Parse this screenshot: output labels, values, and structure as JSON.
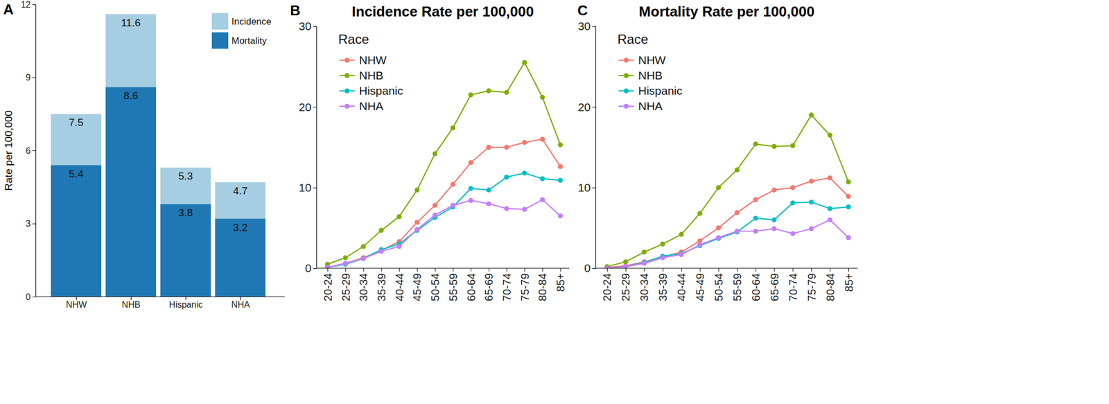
{
  "chart_data": [
    {
      "type": "bar",
      "annotations": [
        "A"
      ],
      "ylabel": "Rate per 100,000",
      "categories": [
        "NHW",
        "NHB",
        "Hispanic",
        "NHA"
      ],
      "series": [
        {
          "name": "Incidence",
          "color": "#a6cee3",
          "values": [
            7.5,
            11.6,
            5.3,
            4.7
          ]
        },
        {
          "name": "Mortality",
          "color": "#1f78b4",
          "values": [
            5.4,
            8.6,
            3.8,
            3.2
          ]
        }
      ],
      "ylim": [
        0,
        12
      ],
      "yticks": [
        0,
        3,
        6,
        9,
        12
      ],
      "stacked": false,
      "data_labels": true,
      "legend": "top-right",
      "grid": false
    },
    {
      "type": "line",
      "annotations": [
        "B"
      ],
      "title": "Incidence Rate per 100,000",
      "legend_title": "Race",
      "categories": [
        "20-24",
        "25-29",
        "30-34",
        "35-39",
        "40-44",
        "45-49",
        "50-54",
        "55-59",
        "60-64",
        "65-69",
        "70-74",
        "75-79",
        "80-84",
        "85+"
      ],
      "series": [
        {
          "name": "NHW",
          "color": "#f8766d",
          "values": [
            0.1,
            0.6,
            1.3,
            2.2,
            3.3,
            5.7,
            7.8,
            10.4,
            13.1,
            15.0,
            15.0,
            15.6,
            16.0,
            12.6
          ]
        },
        {
          "name": "NHB",
          "color": "#7cae00",
          "values": [
            0.5,
            1.3,
            2.7,
            4.7,
            6.4,
            9.7,
            14.2,
            17.4,
            21.5,
            22.0,
            21.8,
            25.5,
            21.2,
            15.3
          ]
        },
        {
          "name": "Hispanic",
          "color": "#00bfc4",
          "values": [
            0.1,
            0.5,
            1.2,
            2.3,
            3.0,
            4.7,
            6.3,
            7.6,
            9.9,
            9.7,
            11.3,
            11.8,
            11.1,
            10.9
          ]
        },
        {
          "name": "NHA",
          "color": "#c77cff",
          "values": [
            0.1,
            0.6,
            1.2,
            2.1,
            2.7,
            4.8,
            6.6,
            7.8,
            8.4,
            8.0,
            7.4,
            7.3,
            8.5,
            6.5
          ]
        }
      ],
      "ylim": [
        0,
        30
      ],
      "yticks": [
        0,
        10,
        20,
        30
      ],
      "marker": "circle",
      "legend": "top-left",
      "grid": false
    },
    {
      "type": "line",
      "annotations": [
        "C"
      ],
      "title": "Mortality Rate per 100,000",
      "legend_title": "Race",
      "categories": [
        "20-24",
        "25-29",
        "30-34",
        "35-39",
        "40-44",
        "45-49",
        "50-54",
        "55-59",
        "60-64",
        "65-69",
        "70-74",
        "75-79",
        "80-84",
        "85+"
      ],
      "series": [
        {
          "name": "NHW",
          "color": "#f8766d",
          "values": [
            0.1,
            0.3,
            0.8,
            1.4,
            2.0,
            3.4,
            5.0,
            6.9,
            8.5,
            9.7,
            10.0,
            10.8,
            11.2,
            8.9
          ]
        },
        {
          "name": "NHB",
          "color": "#7cae00",
          "values": [
            0.2,
            0.8,
            2.0,
            3.0,
            4.2,
            6.8,
            10.0,
            12.2,
            15.4,
            15.1,
            15.2,
            19.0,
            16.5,
            10.7
          ]
        },
        {
          "name": "Hispanic",
          "color": "#00bfc4",
          "values": [
            0.0,
            0.2,
            0.7,
            1.5,
            1.8,
            2.8,
            3.7,
            4.5,
            6.2,
            6.0,
            8.1,
            8.2,
            7.4,
            7.6
          ]
        },
        {
          "name": "NHA",
          "color": "#c77cff",
          "values": [
            0.0,
            0.2,
            0.6,
            1.3,
            1.7,
            2.9,
            3.8,
            4.6,
            4.6,
            4.9,
            4.3,
            4.9,
            6.0,
            3.8
          ]
        }
      ],
      "ylim": [
        0,
        30
      ],
      "yticks": [
        0,
        10,
        20,
        30
      ],
      "marker": "circle",
      "legend": "top-left",
      "grid": false
    }
  ]
}
